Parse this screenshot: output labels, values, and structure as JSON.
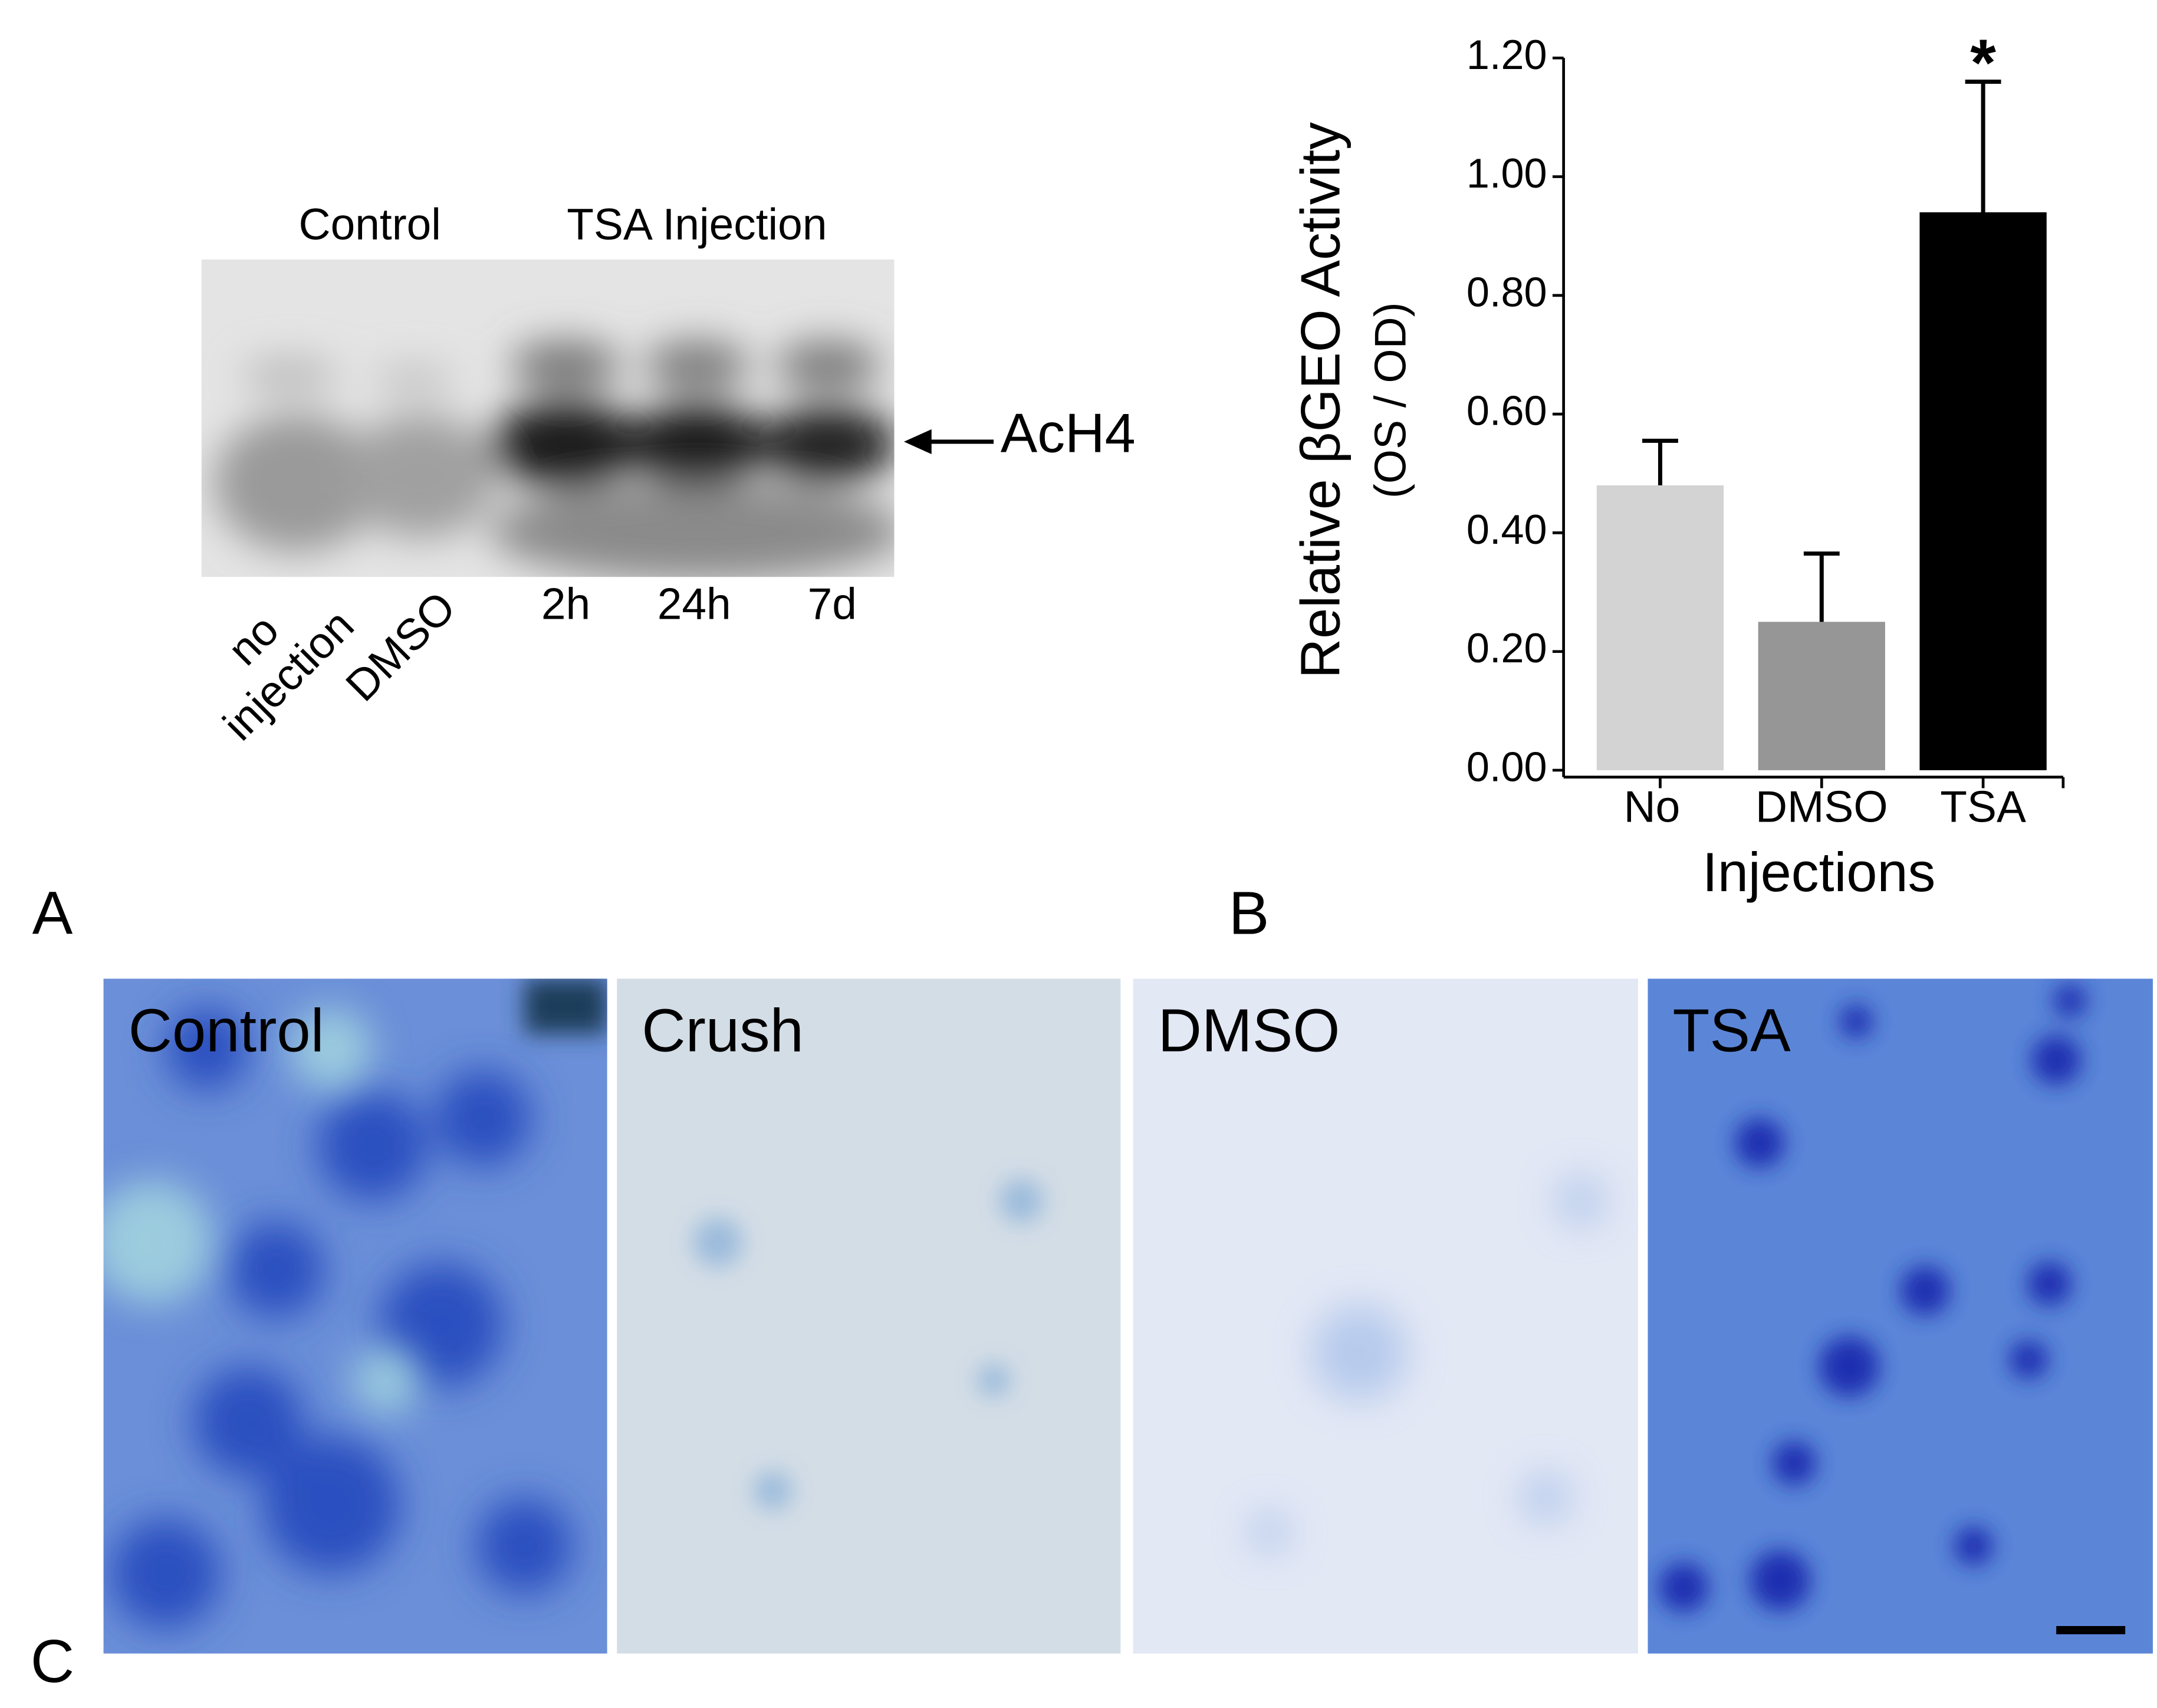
{
  "blot": {
    "group_labels": [
      "Control",
      "TSA Injection"
    ],
    "lane_labels": [
      [
        "no",
        "injection"
      ],
      [
        "DMSO"
      ],
      [
        "2h"
      ],
      [
        "24h"
      ],
      [
        "7d"
      ]
    ],
    "band_label": "AcH4"
  },
  "chart_data": {
    "type": "bar",
    "ylabel": "Relative βGEO Activity",
    "ylabel_sub": "(OS / OD)",
    "xlabel": "Injections",
    "categories": [
      "No",
      "DMSO",
      "TSA"
    ],
    "values": [
      0.48,
      0.25,
      0.94
    ],
    "errors": [
      0.075,
      0.115,
      0.22
    ],
    "colors": [
      "#d3d3d3",
      "#969696",
      "#000000"
    ],
    "ylim": [
      0,
      1.2
    ],
    "yticks": [
      {
        "value": 0,
        "label": "0.00"
      },
      {
        "value": 0.2,
        "label": "0.20"
      },
      {
        "value": 0.4,
        "label": "0.40"
      },
      {
        "value": 0.6,
        "label": "0.60"
      },
      {
        "value": 0.8,
        "label": "0.80"
      },
      {
        "value": 1.0,
        "label": "1.00"
      },
      {
        "value": 1.2,
        "label": "1.20"
      }
    ],
    "annotations": [
      {
        "text": "*",
        "x": "TSA"
      }
    ]
  },
  "micrographs": {
    "labels": [
      "Control",
      "Crush",
      "DMSO",
      "TSA"
    ]
  },
  "panel_labels": [
    "A",
    "B",
    "C"
  ]
}
